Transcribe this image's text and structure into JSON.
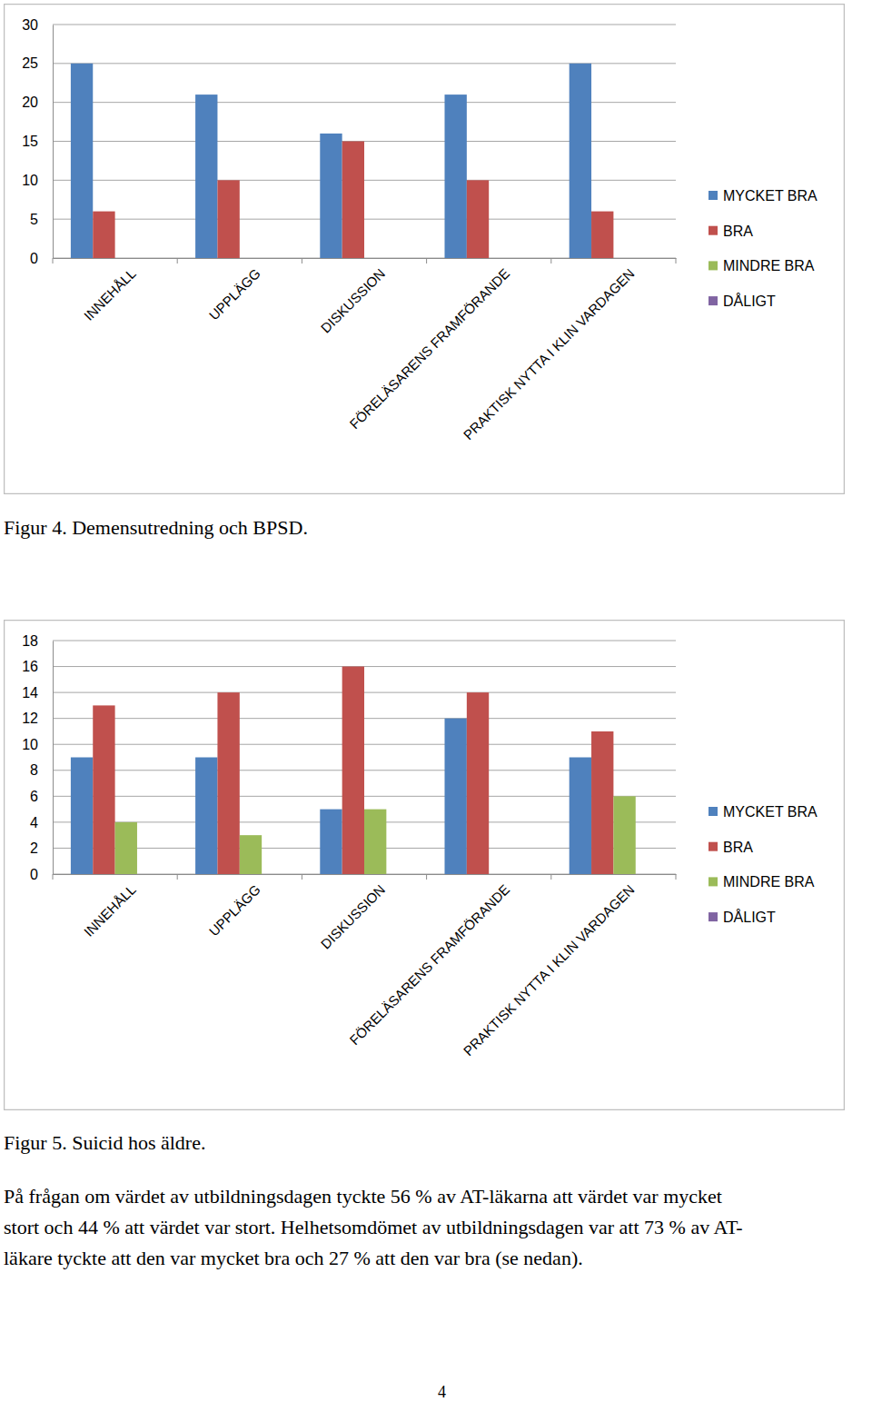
{
  "chart_data": [
    {
      "type": "bar",
      "title": "Figur 4. Demensutredning och BPSD.",
      "categories": [
        "INNEHÅLL",
        "UPPLÄGG",
        "DISKUSSION",
        "FÖRELÄSARENS FRAMFÖRANDE",
        "PRAKTISK NYTTA I KLIN VARDAGEN"
      ],
      "series": [
        {
          "name": "MYCKET BRA",
          "color": "#4f81bd",
          "values": [
            25,
            21,
            16,
            21,
            25
          ]
        },
        {
          "name": "BRA",
          "color": "#c0504d",
          "values": [
            6,
            10,
            15,
            10,
            6
          ]
        },
        {
          "name": "MINDRE BRA",
          "color": "#9bbb59",
          "values": [
            0,
            0,
            0,
            0,
            0
          ]
        },
        {
          "name": "DÅLIGT",
          "color": "#8064a2",
          "values": [
            0,
            0,
            0,
            0,
            0
          ]
        }
      ],
      "ylim": [
        0,
        30
      ],
      "yticks": [
        0,
        5,
        10,
        15,
        20,
        25,
        30
      ],
      "grid": true,
      "legend": "right"
    },
    {
      "type": "bar",
      "title": "Figur 5. Suicid hos äldre.",
      "categories": [
        "INNEHÅLL",
        "UPPLÄGG",
        "DISKUSSION",
        "FÖRELÄSARENS FRAMFÖRANDE",
        "PRAKTISK NYTTA I KLIN VARDAGEN"
      ],
      "series": [
        {
          "name": "MYCKET BRA",
          "color": "#4f81bd",
          "values": [
            9,
            9,
            5,
            12,
            9
          ]
        },
        {
          "name": "BRA",
          "color": "#c0504d",
          "values": [
            13,
            14,
            16,
            14,
            11
          ]
        },
        {
          "name": "MINDRE BRA",
          "color": "#9bbb59",
          "values": [
            4,
            3,
            5,
            0,
            6
          ]
        },
        {
          "name": "DÅLIGT",
          "color": "#8064a2",
          "values": [
            0,
            0,
            0,
            0,
            0
          ]
        }
      ],
      "ylim": [
        0,
        18
      ],
      "yticks": [
        0,
        2,
        4,
        6,
        8,
        10,
        12,
        14,
        16,
        18
      ],
      "grid": true,
      "legend": "right"
    }
  ],
  "text": {
    "paragraph": [
      "På frågan om värdet av utbildningsdagen tyckte 56 % av AT-läkarna att värdet var mycket",
      "stort och 44 % att värdet var stort. Helhetsomdömet av utbildningsdagen var att 73 % av AT-",
      "läkare tyckte att den var mycket bra och 27 % att den var bra (se nedan)."
    ],
    "page_number": "4"
  }
}
